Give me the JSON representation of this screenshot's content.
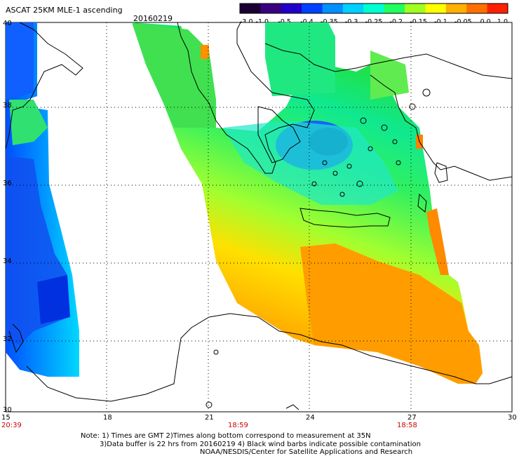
{
  "header": {
    "title": "ASCAT 25KM MLE-1 ascending",
    "date": "20160219"
  },
  "colorbar": {
    "labels": [
      "-3.0",
      "-1.0",
      "-0.5",
      "-0.4",
      "-0.35",
      "-0.3",
      "-0.25",
      "-0.2",
      "-0.15",
      "-0.1",
      "-0.05",
      "0.0",
      "1.0"
    ],
    "colors": [
      "#1a0033",
      "#3a0080",
      "#2000c8",
      "#0040ff",
      "#0090ff",
      "#00d0ff",
      "#00ffd0",
      "#20ff60",
      "#a0ff20",
      "#ffff00",
      "#ffb000",
      "#ff7000",
      "#ff2000"
    ]
  },
  "map": {
    "lat_labels": [
      "40",
      "38",
      "36",
      "34",
      "32",
      "30"
    ],
    "lon_labels": [
      "15",
      "18",
      "21",
      "24",
      "27",
      "30"
    ],
    "time_labels": [
      "20:39",
      "18:59",
      "18:58"
    ]
  },
  "notes": {
    "line1": "Note: 1) Times are GMT 2)Times along bottom correspond to measurement at 35N",
    "line2": "3)Data buffer is 22 hrs from 20160219 4) Black wind barbs indicate possible contamination",
    "line3": "NOAA/NESDIS/Center for Satellite Applications and Research"
  }
}
